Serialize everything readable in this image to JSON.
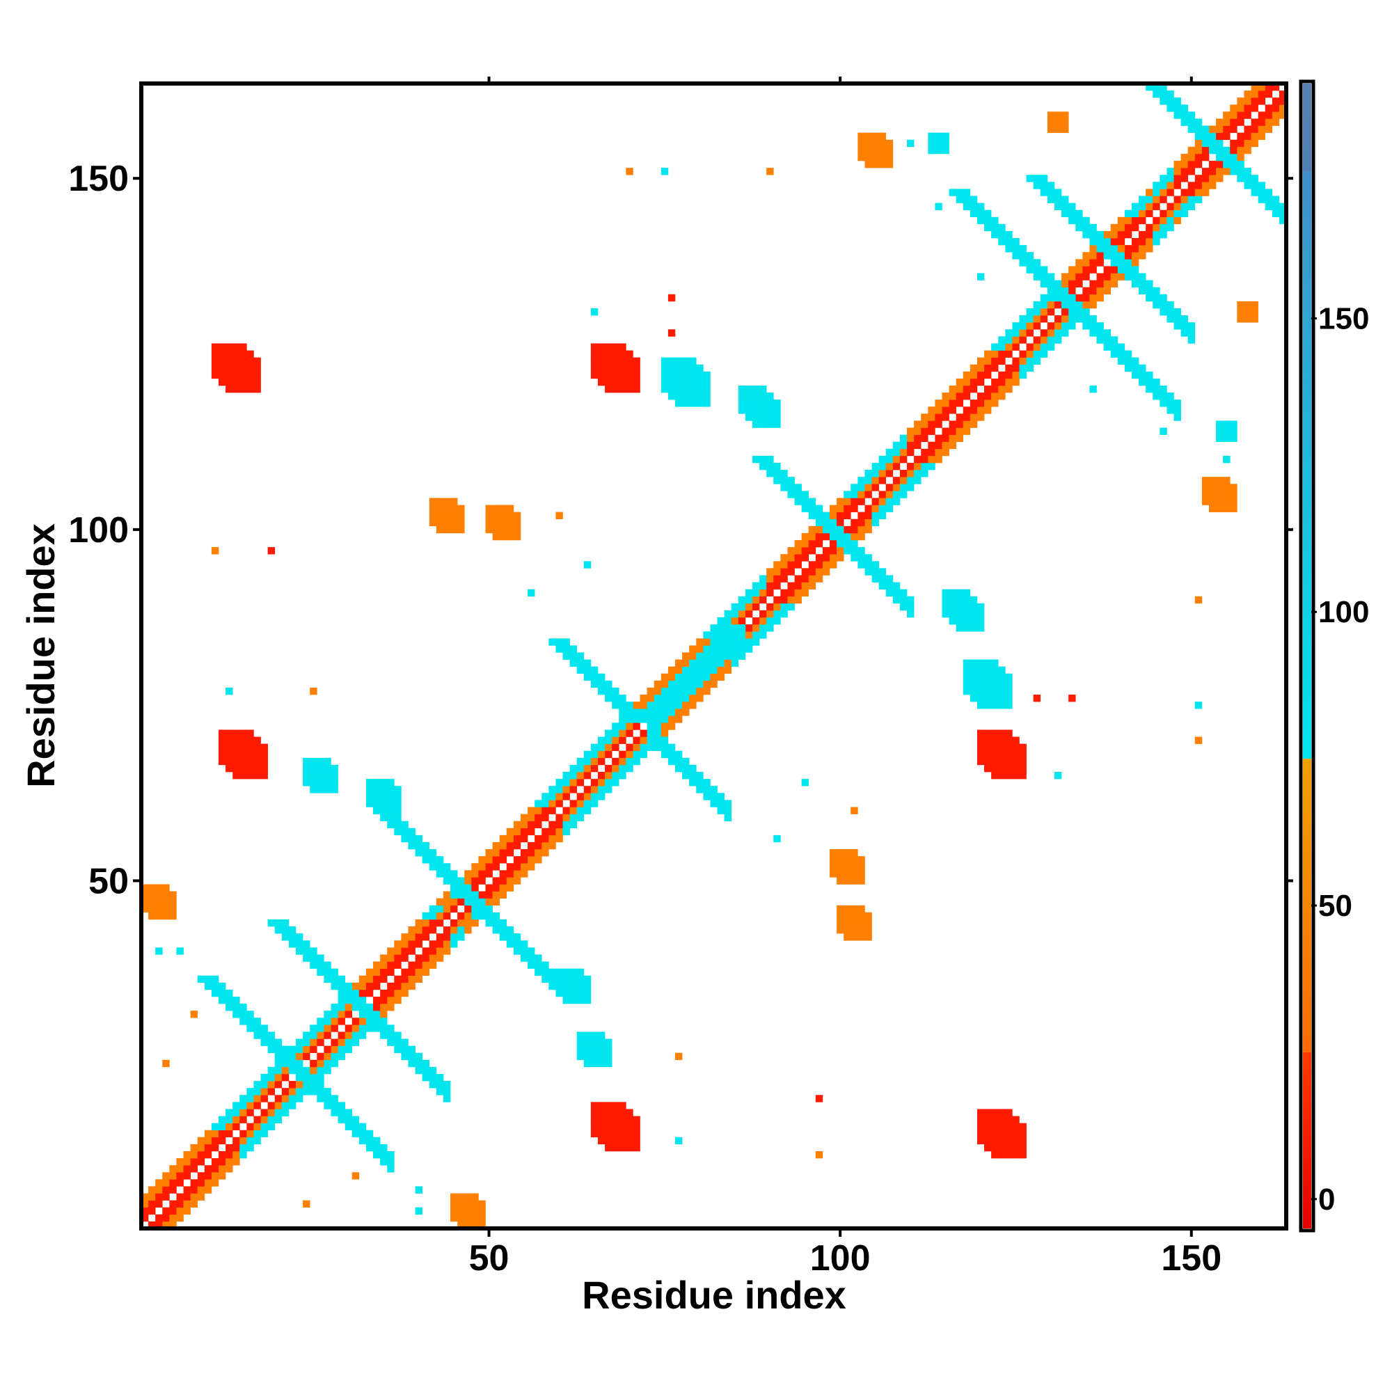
{
  "chart_data": {
    "type": "heatmap",
    "title": "",
    "xlabel": "Residue index",
    "ylabel": "Residue index",
    "xlim": [
      1,
      163
    ],
    "ylim": [
      1,
      163
    ],
    "x_ticks": [
      "50",
      "100",
      "150"
    ],
    "x_tick_values": [
      50,
      100,
      150
    ],
    "y_ticks": [
      "50",
      "100",
      "150"
    ],
    "y_tick_values": [
      50,
      100,
      150
    ],
    "colorbar": {
      "range": [
        -5,
        190
      ],
      "ticks": [
        "0",
        "50",
        "100",
        "150"
      ],
      "tick_values": [
        0,
        50,
        100,
        150
      ],
      "bands": [
        {
          "from": -5,
          "to": 25,
          "color": "#ff1a00"
        },
        {
          "from": 25,
          "to": 75,
          "color": "#ff7f00"
        },
        {
          "from": 75,
          "to": 175,
          "color": "#00e5ee"
        },
        {
          "from": 175,
          "to": 190,
          "color": "#4f80b8"
        }
      ],
      "band_gradients": [
        [
          "#e60000",
          "#ff3a00"
        ],
        [
          "#ff6a00",
          "#f0a000"
        ],
        [
          "#00e6f0",
          "#3f8fc8"
        ],
        [
          "#4f7fb5",
          "#5a7fb0"
        ]
      ]
    },
    "palette": {
      "red": "#ff1a00",
      "orange": "#ff7f00",
      "cyan": "#00e5ee",
      "steel": "#4a8ec4"
    },
    "helices": [
      [
        1,
        14
      ],
      [
        31,
        44
      ],
      [
        47,
        60
      ],
      [
        71,
        84
      ],
      [
        90,
        104
      ],
      [
        110,
        125
      ],
      [
        131,
        144
      ],
      [
        148,
        163
      ]
    ],
    "strands": [
      {
        "a": [
          10,
          25
        ],
        "b": [
          21,
          36
        ],
        "anti": true
      },
      {
        "a": [
          20,
          38
        ],
        "b": [
          30,
          44
        ],
        "anti": true
      },
      {
        "a": [
          35,
          50
        ],
        "b": [
          46,
          60
        ],
        "anti": true
      },
      {
        "a": [
          60,
          76
        ],
        "b": [
          74,
          84
        ],
        "anti": true
      },
      {
        "a": [
          72,
          88
        ],
        "b": [
          73,
          86
        ],
        "anti": false
      },
      {
        "a": [
          89,
          104
        ],
        "b": [
          96,
          110
        ],
        "anti": true
      },
      {
        "a": [
          117,
          135
        ],
        "b": [
          128,
          148
        ],
        "anti": true
      },
      {
        "a": [
          128,
          148
        ],
        "b": [
          138,
          150
        ],
        "anti": true
      },
      {
        "a": [
          145,
          160
        ],
        "b": [
          152,
          163
        ],
        "anti": true
      }
    ],
    "patches": [
      {
        "x": 14,
        "y": 123,
        "v": 5,
        "w": 3
      },
      {
        "x": 15,
        "y": 68,
        "v": 5,
        "w": 3
      },
      {
        "x": 68,
        "y": 123,
        "v": 5,
        "w": 3
      },
      {
        "x": 68,
        "y": 15,
        "v": 5,
        "w": 3
      },
      {
        "x": 123,
        "y": 68,
        "v": 5,
        "w": 3
      },
      {
        "x": 123,
        "y": 14,
        "v": 5,
        "w": 3
      },
      {
        "x": 3,
        "y": 47,
        "v": 50,
        "w": 2
      },
      {
        "x": 47,
        "y": 3,
        "v": 50,
        "w": 2
      },
      {
        "x": 52,
        "y": 101,
        "v": 50,
        "w": 2
      },
      {
        "x": 101,
        "y": 52,
        "v": 50,
        "w": 2
      },
      {
        "x": 105,
        "y": 154,
        "v": 50,
        "w": 2
      },
      {
        "x": 154,
        "y": 105,
        "v": 50,
        "w": 2
      },
      {
        "x": 65,
        "y": 26,
        "v": 110,
        "w": 2
      },
      {
        "x": 26,
        "y": 65,
        "v": 110,
        "w": 2
      },
      {
        "x": 62,
        "y": 35,
        "v": 150,
        "w": 2
      },
      {
        "x": 35,
        "y": 62,
        "v": 150,
        "w": 2
      },
      {
        "x": 78,
        "y": 121,
        "v": 150,
        "w": 3
      },
      {
        "x": 121,
        "y": 78,
        "v": 150,
        "w": 3
      },
      {
        "x": 88,
        "y": 118,
        "v": 110,
        "w": 2
      },
      {
        "x": 118,
        "y": 88,
        "v": 110,
        "w": 2
      },
      {
        "x": 117,
        "y": 89,
        "v": 150,
        "w": 2
      },
      {
        "x": 89,
        "y": 117,
        "v": 150,
        "w": 2
      },
      {
        "x": 155,
        "y": 114,
        "v": 110,
        "w": 1
      },
      {
        "x": 114,
        "y": 155,
        "v": 110,
        "w": 1
      },
      {
        "x": 102,
        "y": 44,
        "v": 50,
        "w": 2
      },
      {
        "x": 44,
        "y": 102,
        "v": 50,
        "w": 2
      },
      {
        "x": 158,
        "y": 131,
        "v": 50,
        "w": 1
      },
      {
        "x": 131,
        "y": 158,
        "v": 50,
        "w": 1
      },
      {
        "x": 140,
        "y": 140,
        "v": 50,
        "w": 0
      }
    ],
    "scatter": [
      [
        70,
        151,
        50
      ],
      [
        151,
        70,
        50
      ],
      [
        75,
        151,
        150
      ],
      [
        151,
        75,
        150
      ],
      [
        19,
        97,
        5
      ],
      [
        97,
        19,
        5
      ],
      [
        65,
        131,
        150
      ],
      [
        131,
        65,
        150
      ],
      [
        76,
        128,
        5
      ],
      [
        128,
        76,
        5
      ],
      [
        64,
        95,
        150
      ],
      [
        95,
        64,
        150
      ],
      [
        60,
        102,
        50
      ],
      [
        102,
        60,
        50
      ],
      [
        91,
        56,
        150
      ],
      [
        56,
        91,
        150
      ],
      [
        13,
        77,
        150
      ],
      [
        77,
        13,
        150
      ],
      [
        25,
        77,
        50
      ],
      [
        77,
        25,
        50
      ],
      [
        136,
        120,
        150
      ],
      [
        120,
        136,
        150
      ],
      [
        146,
        114,
        150
      ],
      [
        114,
        146,
        150
      ],
      [
        151,
        90,
        50
      ],
      [
        90,
        151,
        50
      ],
      [
        8,
        31,
        50
      ],
      [
        31,
        8,
        50
      ],
      [
        6,
        40,
        150
      ],
      [
        40,
        6,
        150
      ],
      [
        97,
        11,
        50
      ],
      [
        11,
        97,
        50
      ],
      [
        133,
        76,
        5
      ],
      [
        76,
        133,
        5
      ],
      [
        110,
        155,
        110
      ],
      [
        155,
        110,
        110
      ],
      [
        24,
        4,
        50
      ],
      [
        4,
        24,
        50
      ],
      [
        40,
        3,
        150
      ],
      [
        3,
        40,
        150
      ]
    ]
  }
}
